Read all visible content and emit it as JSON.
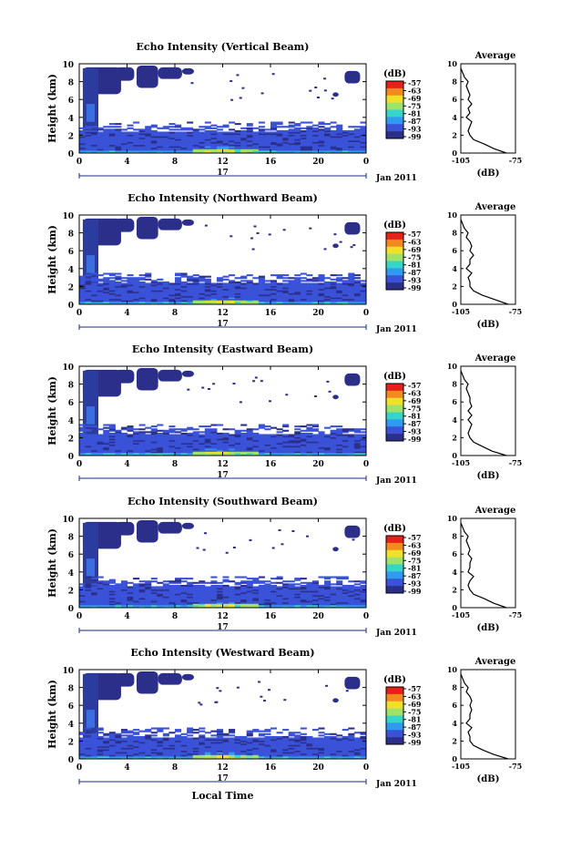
{
  "figure": {
    "xlabel": "Local Time",
    "date_label": "Jan 2011",
    "day_label": "17",
    "colorbar_unit": "(dB)",
    "colorbar_ticks": [
      "-57",
      "-63",
      "-69",
      "-75",
      "-81",
      "-87",
      "-93",
      "-99"
    ],
    "colorbar_colors": [
      "#e8201a",
      "#f28a1e",
      "#f0e02a",
      "#9fe26a",
      "#35d6c8",
      "#2f9bf0",
      "#3a52d8",
      "#2c2f8a"
    ],
    "profile_title": "Average",
    "profile_xlabel": "(dB)",
    "profile_xticks": [
      "-105",
      "-75"
    ],
    "xticks": [
      "0",
      "4",
      "8",
      "12",
      "16",
      "20",
      "0"
    ],
    "yticks": [
      "0",
      "2",
      "4",
      "6",
      "8",
      "10"
    ],
    "ylabel": "Height (km)"
  },
  "chart_data": [
    {
      "type": "heatmap",
      "title": "Echo Intensity (Vertical Beam)",
      "xlabel": "",
      "ylabel": "Height (km)",
      "x_range_hours": [
        0,
        24
      ],
      "ylim": [
        0,
        10
      ],
      "colorbar": {
        "label": "(dB)",
        "range": [
          -99,
          -57
        ],
        "ticks": [
          -57,
          -63,
          -69,
          -75,
          -81,
          -87,
          -93,
          -99
        ]
      },
      "profile": {
        "title": "Average",
        "xlabel": "(dB)",
        "xlim": [
          -105,
          -75
        ],
        "height_km": [
          0,
          0.5,
          1,
          1.5,
          2,
          2.5,
          3,
          3.5,
          4,
          4.5,
          5,
          5.5,
          6,
          6.5,
          7,
          7.5,
          8,
          8.5,
          9,
          9.5
        ],
        "avg_db": [
          -80,
          -87,
          -92,
          -98,
          -100,
          -101,
          -100,
          -99,
          -102,
          -100,
          -101,
          -99,
          -101,
          -100,
          -101,
          -102,
          -101,
          -103,
          -104,
          -105
        ]
      }
    },
    {
      "type": "heatmap",
      "title": "Echo Intensity (Northward Beam)",
      "xlabel": "",
      "ylabel": "Height (km)",
      "x_range_hours": [
        0,
        24
      ],
      "ylim": [
        0,
        10
      ],
      "colorbar": {
        "label": "(dB)",
        "range": [
          -99,
          -57
        ],
        "ticks": [
          -57,
          -63,
          -69,
          -75,
          -81,
          -87,
          -93,
          -99
        ]
      },
      "profile": {
        "title": "Average",
        "xlabel": "(dB)",
        "xlim": [
          -105,
          -75
        ],
        "height_km": [
          0,
          0.5,
          1,
          1.5,
          2,
          2.5,
          3,
          3.5,
          4,
          4.5,
          5,
          5.5,
          6,
          6.5,
          7,
          7.5,
          8,
          8.5,
          9,
          9.5
        ],
        "avg_db": [
          -79,
          -86,
          -93,
          -98,
          -100,
          -100,
          -101,
          -99,
          -102,
          -100,
          -100,
          -98,
          -100,
          -99,
          -100,
          -102,
          -101,
          -103,
          -104,
          -105
        ]
      }
    },
    {
      "type": "heatmap",
      "title": "Echo Intensity (Eastward Beam)",
      "xlabel": "",
      "ylabel": "Height (km)",
      "x_range_hours": [
        0,
        24
      ],
      "ylim": [
        0,
        10
      ],
      "colorbar": {
        "label": "(dB)",
        "range": [
          -99,
          -57
        ],
        "ticks": [
          -57,
          -63,
          -69,
          -75,
          -81,
          -87,
          -93,
          -99
        ]
      },
      "profile": {
        "title": "Average",
        "xlabel": "(dB)",
        "xlim": [
          -105,
          -75
        ],
        "height_km": [
          0,
          0.5,
          1,
          1.5,
          2,
          2.5,
          3,
          3.5,
          4,
          4.5,
          5,
          5.5,
          6,
          6.5,
          7,
          7.5,
          8,
          8.5,
          9,
          9.5
        ],
        "avg_db": [
          -80,
          -88,
          -93,
          -98,
          -100,
          -101,
          -100,
          -99,
          -101,
          -99,
          -101,
          -99,
          -100,
          -100,
          -101,
          -102,
          -101,
          -103,
          -104,
          -105
        ]
      }
    },
    {
      "type": "heatmap",
      "title": "Echo Intensity (Southward Beam)",
      "xlabel": "",
      "ylabel": "Height (km)",
      "x_range_hours": [
        0,
        24
      ],
      "ylim": [
        0,
        10
      ],
      "colorbar": {
        "label": "(dB)",
        "range": [
          -99,
          -57
        ],
        "ticks": [
          -57,
          -63,
          -69,
          -75,
          -81,
          -87,
          -93,
          -99
        ]
      },
      "profile": {
        "title": "Average",
        "xlabel": "(dB)",
        "xlim": [
          -105,
          -75
        ],
        "height_km": [
          0,
          0.5,
          1,
          1.5,
          2,
          2.5,
          3,
          3.5,
          4,
          4.5,
          5,
          5.5,
          6,
          6.5,
          7,
          7.5,
          8,
          8.5,
          9,
          9.5
        ],
        "avg_db": [
          -80,
          -87,
          -92,
          -98,
          -100,
          -101,
          -100,
          -98,
          -101,
          -100,
          -100,
          -99,
          -101,
          -100,
          -101,
          -102,
          -101,
          -103,
          -104,
          -105
        ]
      }
    },
    {
      "type": "heatmap",
      "title": "Echo Intensity (Westward Beam)",
      "xlabel": "Local Time",
      "ylabel": "Height (km)",
      "x_range_hours": [
        0,
        24
      ],
      "ylim": [
        0,
        10
      ],
      "colorbar": {
        "label": "(dB)",
        "range": [
          -99,
          -57
        ],
        "ticks": [
          -57,
          -63,
          -69,
          -75,
          -81,
          -87,
          -93,
          -99
        ]
      },
      "profile": {
        "title": "Average",
        "xlabel": "(dB)",
        "xlim": [
          -105,
          -75
        ],
        "height_km": [
          0,
          0.5,
          1,
          1.5,
          2,
          2.5,
          3,
          3.5,
          4,
          4.5,
          5,
          5.5,
          6,
          6.5,
          7,
          7.5,
          8,
          8.5,
          9,
          9.5
        ],
        "avg_db": [
          -79,
          -87,
          -93,
          -98,
          -100,
          -100,
          -101,
          -99,
          -102,
          -100,
          -100,
          -99,
          -100,
          -99,
          -100,
          -102,
          -101,
          -103,
          -104,
          -105
        ]
      }
    }
  ]
}
